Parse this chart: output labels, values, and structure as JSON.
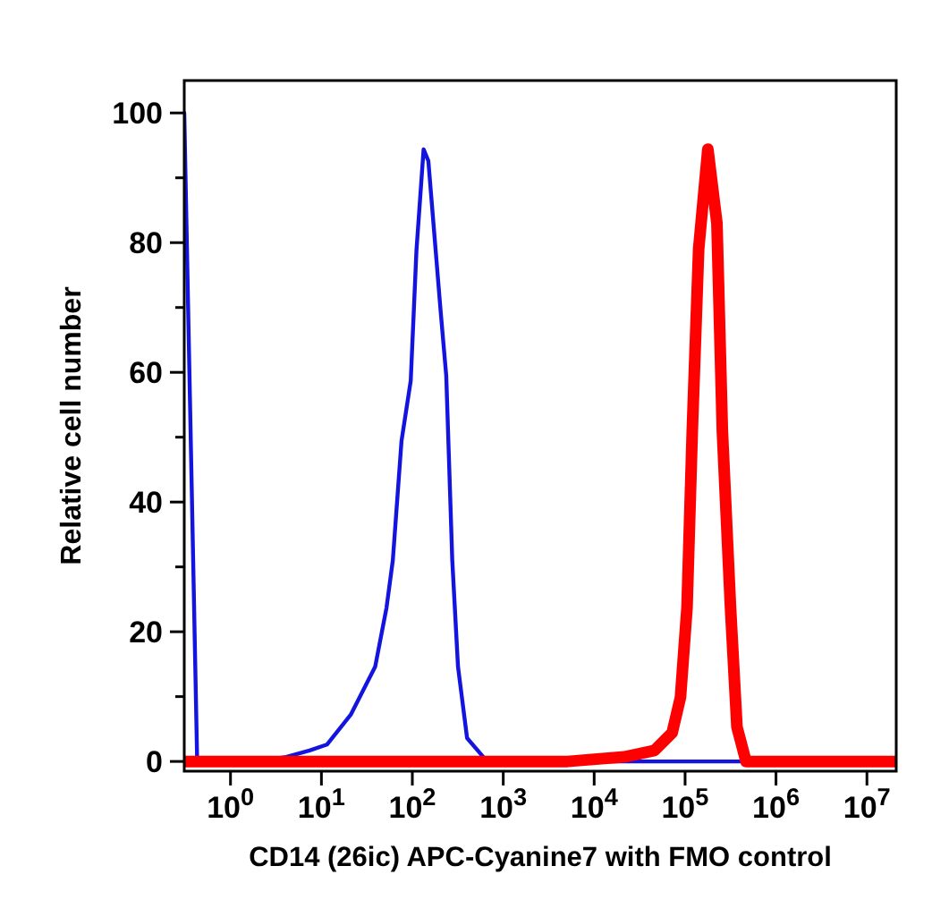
{
  "chart_data": {
    "type": "line",
    "xlabel": "CD14 (26ic) APC-Cyanine7 with FMO control",
    "ylabel": "Relative cell number",
    "log": "x",
    "xlim": [
      0.31,
      21000000
    ],
    "ylim": [
      -1.5,
      105
    ],
    "xticks": [
      {
        "value": 1,
        "label": "10$^{0}$"
      },
      {
        "value": 10,
        "label": "10$^{1}$"
      },
      {
        "value": 100,
        "label": "10$^{2}$"
      },
      {
        "value": 1000,
        "label": "10$^{3}$"
      },
      {
        "value": 10000,
        "label": "10$^{4}$"
      },
      {
        "value": 100000,
        "label": "10$^{5}$"
      },
      {
        "value": 1000000,
        "label": "10$^{6}$"
      },
      {
        "value": 10000000,
        "label": "10$^{7}$"
      }
    ],
    "yticks": [
      0,
      {
        "value": 10,
        "label": null
      },
      20,
      {
        "value": 30,
        "label": null
      },
      40,
      {
        "value": 50,
        "label": null
      },
      60,
      {
        "value": 70,
        "label": null
      },
      80,
      {
        "value": 90,
        "label": null
      },
      100
    ],
    "marker": "none",
    "line_style": "solid",
    "series": [
      {
        "color": "#1414e0",
        "x": [
          0.31,
          0.43,
          1.9,
          4.1,
          7.4,
          11.5,
          21,
          39,
          52,
          61,
          76,
          96,
          111,
          133,
          150,
          204,
          236,
          275,
          318,
          400,
          665,
          21000000
        ],
        "values": [
          100,
          0,
          0,
          0.7,
          1.7,
          2.6,
          7.2,
          14.6,
          23.7,
          31,
          49.4,
          58.7,
          78.8,
          94.4,
          92.6,
          69.7,
          59.5,
          31,
          14.6,
          3.6,
          0,
          0
        ]
      },
      {
        "color": "#ff0000",
        "x": [
          0.31,
          5100,
          21400,
          46000,
          72000,
          89000,
          105000,
          120000,
          141000,
          178000,
          224000,
          257000,
          316000,
          372000,
          468000,
          21000000
        ],
        "values": [
          0,
          0,
          0.7,
          1.7,
          4.4,
          9.9,
          23.7,
          51,
          79,
          94.4,
          83,
          51,
          23.7,
          5.3,
          0,
          0
        ]
      }
    ]
  }
}
